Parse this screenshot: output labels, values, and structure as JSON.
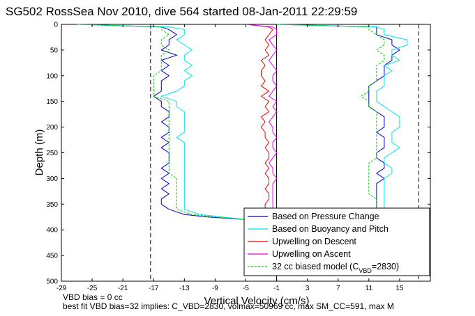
{
  "chart_data": {
    "type": "line",
    "title": "SG502 RossSea Nov 2010, dive 564 started 08-Jan-2011 22:29:59",
    "xlabel": "Vertical Velocity (cm/s)",
    "ylabel": "Depth (m)",
    "xlim": [
      -29,
      19
    ],
    "ylim": [
      0,
      500
    ],
    "y_reversed": true,
    "grid": false,
    "legend_position": "bottom-right",
    "x_ticks": [
      "-29",
      "-25",
      "-21",
      "-17",
      "-13",
      "-9",
      "-5",
      "-1",
      "3",
      "7",
      "11",
      "15"
    ],
    "y_ticks": [
      "0",
      "50",
      "100",
      "150",
      "200",
      "250",
      "300",
      "350",
      "400",
      "450",
      "500"
    ],
    "reference_lines": [
      {
        "x": -17.4,
        "style": "dashed",
        "color": "#000000"
      },
      {
        "x": -1,
        "style": "solid",
        "color": "#000000"
      },
      {
        "x": 17.5,
        "style": "dashed",
        "color": "#000000"
      }
    ],
    "depth": [
      0,
      5,
      10,
      20,
      30,
      40,
      50,
      60,
      70,
      80,
      90,
      100,
      110,
      120,
      130,
      140,
      150,
      160,
      170,
      180,
      190,
      200,
      210,
      220,
      230,
      240,
      250,
      260,
      270,
      280,
      290,
      300,
      310,
      320,
      330,
      340,
      350,
      360,
      370,
      375,
      380
    ],
    "series": [
      {
        "name": "Based on Pressure Change",
        "color": "#0000cc",
        "descent": [
          -27,
          -16,
          -15,
          -14,
          -15,
          -15,
          -16,
          -14,
          -16,
          -15,
          -16,
          -15,
          -16,
          -16,
          -16,
          -17,
          -16,
          -16,
          -15,
          -15,
          -16,
          -15,
          -15,
          -16,
          -15,
          -16,
          -15,
          -15,
          -15,
          -16,
          -15,
          -16,
          -15,
          -16,
          -15,
          -16,
          -16,
          -15,
          -13,
          -10,
          -5
        ],
        "ascent": [
          -1,
          12,
          12,
          12,
          14,
          14,
          15,
          14,
          14,
          13,
          13,
          13,
          12,
          11,
          11,
          11,
          11,
          11,
          12,
          13,
          13,
          13,
          12,
          13,
          13,
          13,
          12,
          12,
          13,
          13,
          12,
          13,
          12,
          12,
          12,
          12,
          12,
          12,
          12,
          12,
          -1
        ]
      },
      {
        "name": "Based on Buoyancy and Pitch",
        "color": "#00e5e5",
        "descent": [
          -27,
          -15,
          -13,
          -13,
          -14,
          -13,
          -12,
          -13,
          -13,
          -12,
          -13,
          -12,
          -13,
          -13,
          -14,
          -16,
          -14,
          -14,
          -13,
          -13,
          -13,
          -13,
          -13,
          -14,
          -13,
          -13,
          -13,
          -13,
          -13,
          -13,
          -13,
          -13,
          -13,
          -13,
          -13,
          -13,
          -13,
          -13,
          -11,
          -8,
          -5
        ],
        "ascent": [
          -1,
          12,
          13,
          13,
          16,
          16,
          14,
          14,
          15,
          13,
          14,
          13,
          13,
          13,
          12,
          12,
          12,
          13,
          14,
          15,
          15,
          15,
          14,
          14,
          14,
          15,
          14,
          13,
          13,
          14,
          14,
          13,
          13,
          13,
          13,
          13,
          13,
          13,
          13,
          13,
          -1
        ]
      },
      {
        "name": "Upwelling on Descent",
        "color": "#ee0000",
        "descent": [
          -5,
          -2,
          -1.5,
          -2,
          -2.5,
          -2,
          -2.5,
          -2,
          -3,
          -2.5,
          -3,
          -3,
          -2.5,
          -3,
          -2,
          -3,
          -2,
          -2.5,
          -2,
          -3,
          -2.5,
          -3,
          -2.5,
          -2.5,
          -2,
          -2.5,
          -2,
          -2,
          -2.5,
          -2,
          -2.5,
          -2,
          -2,
          -2.5,
          -2,
          -2,
          -2.5,
          -2.5,
          -1.5,
          -1,
          -1
        ]
      },
      {
        "name": "Upwelling on Ascent",
        "color": "#e000e0",
        "ascent": [
          -5,
          -1.5,
          -1,
          -1,
          -2,
          -1.5,
          -1,
          -1.5,
          -2,
          -1.5,
          -1,
          -1.5,
          -1.5,
          -1,
          -1.5,
          -2,
          -1,
          -1.5,
          -1,
          -1.5,
          -2,
          -1.5,
          -1.5,
          -1,
          -1.5,
          -1.5,
          -1,
          -1.5,
          -2,
          -1.5,
          -1.5,
          -1,
          -1.5,
          -1.5,
          -1.5,
          -1.5,
          -1.5,
          -1.5,
          -1.5,
          -1.5,
          -1
        ]
      },
      {
        "name": "32 cc biased model (C",
        "name_sub": "VBD",
        "name_tail": "=2830)",
        "color": "#00cc00",
        "dashed": true,
        "descent": [
          -27,
          -16,
          -16,
          -15,
          -16,
          -16,
          -15,
          -16,
          -16,
          -16,
          -16,
          -17,
          -17,
          -17,
          -17,
          -17,
          -15,
          -15,
          -15,
          -15,
          -15,
          -15,
          -15,
          -15,
          -15,
          -15,
          -15,
          -15,
          -15,
          -15,
          -15,
          -14,
          -14,
          -14,
          -14,
          -14,
          -14,
          -14,
          -12,
          -9,
          -5
        ],
        "ascent": [
          -1,
          11,
          11,
          12,
          13,
          13,
          12,
          13,
          13,
          12,
          12,
          12,
          12,
          11,
          11,
          10,
          11,
          11,
          12,
          12,
          12,
          12,
          12,
          12,
          12,
          12,
          12,
          12,
          11,
          11,
          11,
          11,
          11,
          11,
          11,
          12,
          12,
          12,
          12,
          12,
          -1
        ]
      }
    ],
    "annotations": [
      "VBD bias = 0 cc",
      "best fit VBD bias=32 implies: C_VBD=2830, volmax=50969 cc, max SM_CC=591, max M"
    ]
  }
}
